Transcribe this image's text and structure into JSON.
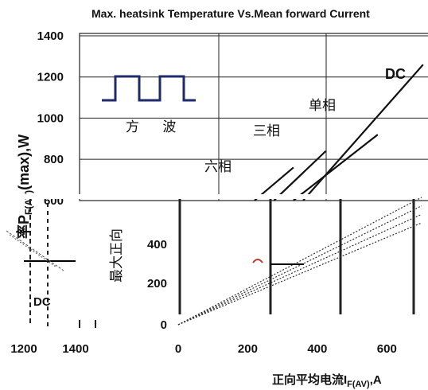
{
  "chart_data": [
    {
      "type": "line",
      "title": "Max. heatsink Temperature Vs.Mean forward Current",
      "ylabel": "P_F(AV)(max),W",
      "ylabel_prefix": "率",
      "ylabel_main": "P",
      "ylabel_sub": "F(AV)",
      "ylabel_tail": "(max),W",
      "yticks": [
        "1400",
        "1200",
        "1000",
        "800",
        "600"
      ],
      "ylim": [
        600,
        1400
      ],
      "waveform_label": "方 波",
      "series": [
        {
          "name": "六相",
          "x": [
            270,
            330
          ],
          "y": [
            600,
            760
          ]
        },
        {
          "name": "三相",
          "x": [
            300,
            380
          ],
          "y": [
            600,
            840
          ]
        },
        {
          "name": "单相",
          "x": [
            330,
            460
          ],
          "y": [
            600,
            920
          ]
        },
        {
          "name": "DC",
          "x": [
            345,
            530
          ],
          "y": [
            600,
            1260
          ]
        }
      ],
      "grid": true
    },
    {
      "type": "line",
      "ylabel": "最大正向",
      "yticks": [
        "400",
        "200",
        "0"
      ],
      "xticks": [
        "0",
        "200",
        "400",
        "600"
      ],
      "xlabel": "正向平均电流",
      "xlabel_main": "正向平均电流I",
      "xlabel_sub": "F(AV)",
      "xlabel_tail": ",A",
      "ylim": [
        0,
        600
      ],
      "xlim": [
        0,
        700
      ],
      "series": [
        {
          "name": "",
          "x": [
            0,
            700
          ],
          "y": [
            0,
            600
          ]
        },
        {
          "name": "",
          "x": [
            0,
            700
          ],
          "y": [
            0,
            560
          ]
        },
        {
          "name": "",
          "x": [
            0,
            700
          ],
          "y": [
            0,
            520
          ]
        },
        {
          "name": "",
          "x": [
            0,
            700
          ],
          "y": [
            0,
            480
          ]
        }
      ],
      "grid": true
    },
    {
      "type": "line",
      "xticks": [
        "1200",
        "1400"
      ],
      "annotation": "DC",
      "grid": true
    }
  ]
}
